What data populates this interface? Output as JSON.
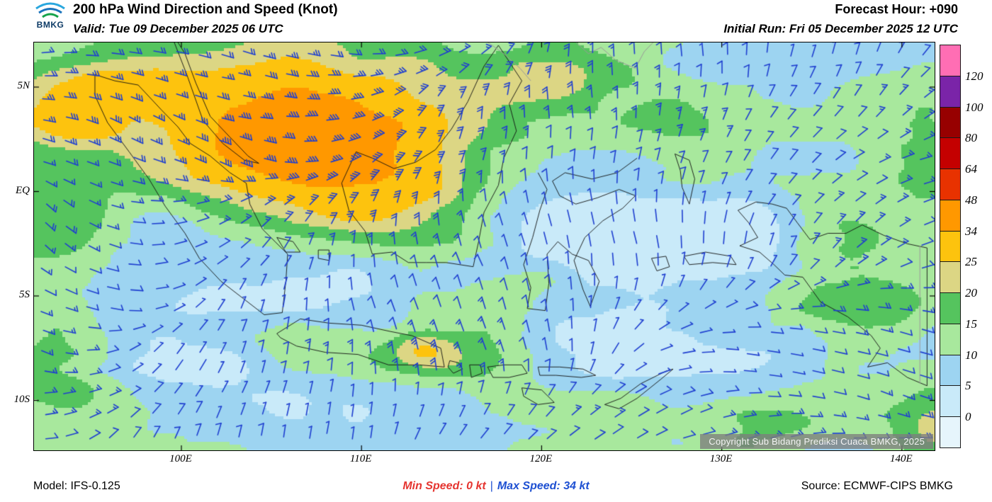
{
  "header": {
    "logo_text": "BMKG",
    "title": "200 hPa Wind Direction and Speed (Knot)",
    "forecast_hour": "Forecast Hour: +090",
    "valid": "Valid: Tue 09 December 2025 06 UTC",
    "initial_run": "Initial Run: Fri 05 December 2025 12 UTC"
  },
  "map": {
    "copyright": "Copyright Sub Bidang Prediksi Cuaca BMKG, 2025",
    "lat_ticks": [
      {
        "label": "5N",
        "lat": 5
      },
      {
        "label": "EQ",
        "lat": 0
      },
      {
        "label": "5S",
        "lat": -5
      },
      {
        "label": "10S",
        "lat": -10
      }
    ],
    "lon_ticks": [
      {
        "label": "100E",
        "lon": 100
      },
      {
        "label": "110E",
        "lon": 110
      },
      {
        "label": "120E",
        "lon": 120
      },
      {
        "label": "130E",
        "lon": 130
      },
      {
        "label": "140E",
        "lon": 140
      }
    ]
  },
  "legend": {
    "labels": [
      "120",
      "100",
      "80",
      "64",
      "48",
      "34",
      "25",
      "20",
      "15",
      "10",
      "5",
      "0"
    ],
    "band_colors_top_to_bottom": [
      "#ff6eb4",
      "#7a24a8",
      "#970000",
      "#c40000",
      "#e83200",
      "#ff9800",
      "#fdc30e",
      "#dcd684",
      "#55c45e",
      "#a8e89d",
      "#9dd4f1",
      "#c9eaf9",
      "#e6f5fc"
    ]
  },
  "footer": {
    "model": "Model: IFS-0.125",
    "min_speed": "Min Speed:  0 kt",
    "separator": "|",
    "max_speed": "Max Speed:  34 kt",
    "source": "Source: ECMWF-CIPS BMKG"
  },
  "chart_data": {
    "type": "heatmap",
    "title": "200 hPa Wind Direction and Speed (Knot)",
    "variable": "wind direction and speed",
    "level": "200 hPa",
    "units": "knot",
    "forecast_hour": 90,
    "valid_time": "Tue 09 December 2025 06 UTC",
    "initial_run": "Fri 05 December 2025 12 UTC",
    "model": "IFS-0.125",
    "source": "ECMWF-CIPS BMKG",
    "min_speed_kt": 0,
    "max_speed_kt": 34,
    "colorbar_levels_kt": [
      0,
      5,
      10,
      15,
      20,
      25,
      34,
      48,
      64,
      80,
      100,
      120
    ],
    "lat_axis": [
      "5N",
      "EQ",
      "5S",
      "10S"
    ],
    "lon_axis": [
      "100E",
      "110E",
      "120E",
      "130E",
      "140E"
    ],
    "legend_position": "right",
    "region": "Indonesia"
  }
}
